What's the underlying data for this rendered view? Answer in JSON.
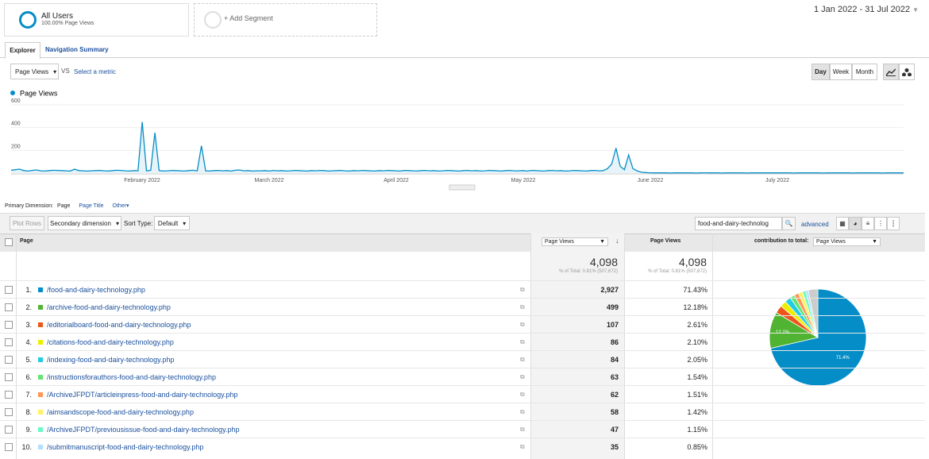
{
  "segments": {
    "all_users": "All Users",
    "all_users_sub": "100.00% Page Views",
    "add": "+ Add Segment"
  },
  "date_range": "1 Jan 2022 - 31 Jul 2022",
  "tabs": [
    "Explorer",
    "Navigation Summary"
  ],
  "metric_select": "Page Views",
  "vs": "VS",
  "select_metric": "Select a metric",
  "granularity": [
    "Day",
    "Week",
    "Month"
  ],
  "chart_data": {
    "type": "line",
    "series": [
      {
        "name": "Page Views",
        "color": "#058dc7",
        "values": [
          25,
          30,
          35,
          22,
          18,
          24,
          28,
          20,
          18,
          22,
          25,
          24,
          22,
          20,
          18,
          35,
          22,
          20,
          18,
          20,
          22,
          24,
          20,
          18,
          22,
          25,
          24,
          20,
          18,
          22,
          20,
          450,
          20,
          25,
          355,
          22,
          18,
          20,
          24,
          22,
          20,
          18,
          22,
          25,
          20,
          240,
          20,
          18,
          22,
          24,
          20,
          22,
          18,
          25,
          28,
          20,
          22,
          18,
          20,
          20,
          22,
          18,
          24,
          20,
          22,
          18,
          20,
          24,
          22,
          20,
          18,
          22,
          20,
          24,
          22,
          18,
          20,
          22,
          24,
          20,
          18,
          22,
          20,
          24,
          22,
          20,
          18,
          22,
          20,
          24,
          22,
          20,
          18,
          24,
          22,
          20,
          18,
          22,
          24,
          20,
          22,
          18,
          20,
          24,
          22,
          20,
          18,
          22,
          24,
          20,
          22,
          18,
          20,
          24,
          22,
          20,
          18,
          22,
          24,
          20,
          20,
          22,
          18,
          24,
          22,
          20,
          18,
          22,
          24,
          20,
          22,
          18,
          20,
          24,
          22,
          20,
          18,
          22,
          24,
          20,
          22,
          40,
          80,
          220,
          60,
          30,
          160,
          40,
          20,
          8,
          5,
          3,
          2,
          2,
          3,
          2,
          1,
          2,
          2,
          3,
          2,
          2,
          1,
          2,
          3,
          2,
          2,
          2,
          1,
          2,
          3,
          2,
          2,
          2,
          1,
          2,
          2,
          3,
          2,
          2,
          2,
          2,
          2,
          3,
          2,
          1,
          2,
          2,
          2,
          3,
          2,
          2,
          1,
          2,
          2,
          3,
          2,
          2,
          2,
          1,
          2,
          2,
          3,
          2,
          2,
          2,
          1,
          2,
          2,
          2,
          3,
          2
        ]
      }
    ],
    "x_labels": [
      "February 2022",
      "March 2022",
      "April 2022",
      "May 2022",
      "June 2022",
      "July 2022"
    ],
    "ylim": [
      0,
      600
    ],
    "yticks": [
      200,
      400,
      600
    ],
    "grid": true
  },
  "primary_dimension": {
    "label": "Primary Dimension:",
    "options": [
      "Page",
      "Page Title",
      "Other"
    ]
  },
  "toolbar": {
    "plot_rows": "Plot Rows",
    "secondary": "Secondary dimension",
    "sort_type": "Sort Type:",
    "sort": "Default",
    "search": "food-and-dairy-technolog",
    "advanced": "advanced"
  },
  "table": {
    "headers": {
      "page": "Page",
      "metric_select": "Page Views",
      "metric": "Page Views",
      "contribution": "contribution to total:",
      "contribution_select": "Page Views"
    },
    "totals": {
      "views_1": "4,098",
      "note_1": "% of Total: 0.81% (507,672)",
      "views_2": "4,098",
      "note_2": "% of Total: 0.81% (507,672)"
    },
    "rows": [
      {
        "rank": "1.",
        "page": "/food-and-dairy-technology.php",
        "color": "#058dc7",
        "views": 2927,
        "views_label": "2,927",
        "share": 71.43,
        "share_label": "71.43%"
      },
      {
        "rank": "2.",
        "page": "/archive-food-and-dairy-technology.php",
        "color": "#50b432",
        "views": 499,
        "views_label": "499",
        "share": 12.18,
        "share_label": "12.18%"
      },
      {
        "rank": "3.",
        "page": "/editorialboard-food-and-dairy-technology.php",
        "color": "#ed561b",
        "views": 107,
        "views_label": "107",
        "share": 2.61,
        "share_label": "2.61%"
      },
      {
        "rank": "4.",
        "page": "/citations-food-and-dairy-technology.php",
        "color": "#edef00",
        "views": 86,
        "views_label": "86",
        "share": 2.1,
        "share_label": "2.10%"
      },
      {
        "rank": "5.",
        "page": "/indexing-food-and-dairy-technology.php",
        "color": "#24cbe5",
        "views": 84,
        "views_label": "84",
        "share": 2.05,
        "share_label": "2.05%"
      },
      {
        "rank": "6.",
        "page": "/instructionsforauthors-food-and-dairy-technology.php",
        "color": "#64e572",
        "views": 63,
        "views_label": "63",
        "share": 1.54,
        "share_label": "1.54%"
      },
      {
        "rank": "7.",
        "page": "/ArchiveJFPDT/articleinpress-food-and-dairy-technology.php",
        "color": "#ff9655",
        "views": 62,
        "views_label": "62",
        "share": 1.51,
        "share_label": "1.51%"
      },
      {
        "rank": "8.",
        "page": "/aimsandscope-food-and-dairy-technology.php",
        "color": "#fff263",
        "views": 58,
        "views_label": "58",
        "share": 1.42,
        "share_label": "1.42%"
      },
      {
        "rank": "9.",
        "page": "/ArchiveJFPDT/previousissue-food-and-dairy-technology.php",
        "color": "#6af9c4",
        "views": 47,
        "views_label": "47",
        "share": 1.15,
        "share_label": "1.15%"
      },
      {
        "rank": "10.",
        "page": "/submitmanuscript-food-and-dairy-technology.php",
        "color": "#b2deff",
        "views": 35,
        "views_label": "35",
        "share": 0.85,
        "share_label": "0.85%"
      }
    ]
  },
  "pie": {
    "other_share": 3.17,
    "other_color": "#cccccc",
    "labels": [
      "71.4%",
      "12.2%"
    ]
  }
}
